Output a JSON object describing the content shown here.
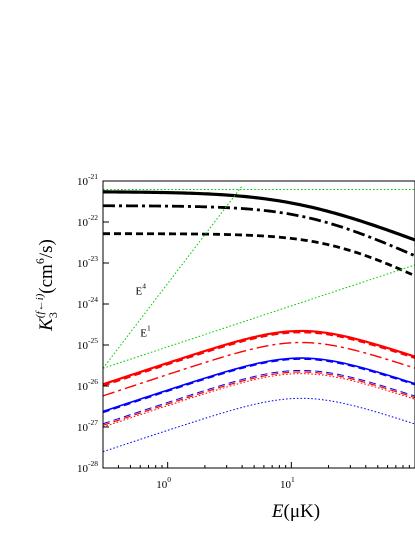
{
  "chart_data": {
    "type": "line",
    "xlabel": {
      "symbol": "E",
      "unit": "(μK)"
    },
    "ylabel": {
      "symbol": "K",
      "sub": "3",
      "sup": "(f←i)",
      "unit": "(cm",
      "unit_sup": "6",
      "unit_end": "/s)"
    },
    "x_scale": "log",
    "y_scale": "log",
    "xlim": [
      0.3,
      100
    ],
    "ylim": [
      1e-28,
      1e-21
    ],
    "x_ticks": [
      {
        "value": 1,
        "base": "10",
        "exp": "0"
      },
      {
        "value": 10,
        "base": "10",
        "exp": "1"
      }
    ],
    "y_ticks": [
      {
        "value": 1e-28,
        "base": "10",
        "exp": "-28"
      },
      {
        "value": 1e-27,
        "base": "10",
        "exp": "-27"
      },
      {
        "value": 1e-26,
        "base": "10",
        "exp": "-26"
      },
      {
        "value": 1e-25,
        "base": "10",
        "exp": "-25"
      },
      {
        "value": 1e-24,
        "base": "10",
        "exp": "-24"
      },
      {
        "value": 1e-23,
        "base": "10",
        "exp": "-23"
      },
      {
        "value": 1e-22,
        "base": "10",
        "exp": "-22"
      },
      {
        "value": 1e-21,
        "base": "10",
        "exp": "-21"
      }
    ],
    "annotations": [
      {
        "base": "E",
        "exp": "4",
        "x": 0.55,
        "y": 1.7e-24
      },
      {
        "base": "E",
        "exp": "1",
        "x": 0.6,
        "y": 1.6e-25
      }
    ],
    "series": [
      {
        "color": "#000000",
        "dash": "solid",
        "width": 3.2,
        "kind": "decay",
        "plateau": 5.5e-22,
        "ec": 11,
        "n": 1.2
      },
      {
        "color": "#000000",
        "dash": "dashdot",
        "width": 2.8,
        "kind": "decay",
        "plateau": 2.5e-22,
        "ec": 14,
        "n": 1.4
      },
      {
        "color": "#000000",
        "dash": "dash",
        "width": 2.8,
        "kind": "decay",
        "plateau": 5.2e-23,
        "ec": 22,
        "n": 1.5
      },
      {
        "color": "#ff0000",
        "dash": "solid",
        "width": 2.2,
        "kind": "peak",
        "peak": 2.2e-25,
        "epk": 12
      },
      {
        "color": "#ff0000",
        "dash": "dash",
        "width": 2.2,
        "kind": "peak",
        "peak": 2.05e-25,
        "epk": 12
      },
      {
        "color": "#ff0000",
        "dash": "dashdot",
        "width": 1.4,
        "kind": "peak",
        "peak": 1.15e-25,
        "epk": 12
      },
      {
        "color": "#ff0000",
        "dash": "dash",
        "width": 1.2,
        "kind": "peak",
        "peak": 2.2e-26,
        "epk": 12
      },
      {
        "color": "#ff0000",
        "dash": "dot",
        "width": 1.0,
        "kind": "peak",
        "peak": 2e-26,
        "epk": 12
      },
      {
        "color": "#0000ff",
        "dash": "solid",
        "width": 1.6,
        "kind": "peak",
        "peak": 4.8e-26,
        "epk": 12
      },
      {
        "color": "#0000ff",
        "dash": "dash",
        "width": 1.3,
        "kind": "peak",
        "peak": 4.5e-26,
        "epk": 12
      },
      {
        "color": "#0000ff",
        "dash": "dash",
        "width": 1.0,
        "kind": "peak",
        "peak": 2.4e-26,
        "epk": 12
      },
      {
        "color": "#0000ff",
        "dash": "dot",
        "width": 1.0,
        "kind": "peak",
        "peak": 5e-27,
        "epk": 12
      },
      {
        "color": "#00cc00",
        "dash": "dot",
        "width": 1.0,
        "kind": "points",
        "x": [
          0.3,
          100
        ],
        "y": [
          6.2e-22,
          6.2e-22
        ]
      },
      {
        "color": "#00cc00",
        "dash": "dot",
        "width": 1.0,
        "kind": "points",
        "x": [
          0.3,
          4.0
        ],
        "y": [
          2.7e-26,
          7.6e-22
        ]
      },
      {
        "color": "#00cc00",
        "dash": "dot",
        "width": 1.0,
        "kind": "points",
        "x": [
          0.3,
          100
        ],
        "y": [
          2.7e-26,
          9e-24
        ]
      }
    ]
  }
}
